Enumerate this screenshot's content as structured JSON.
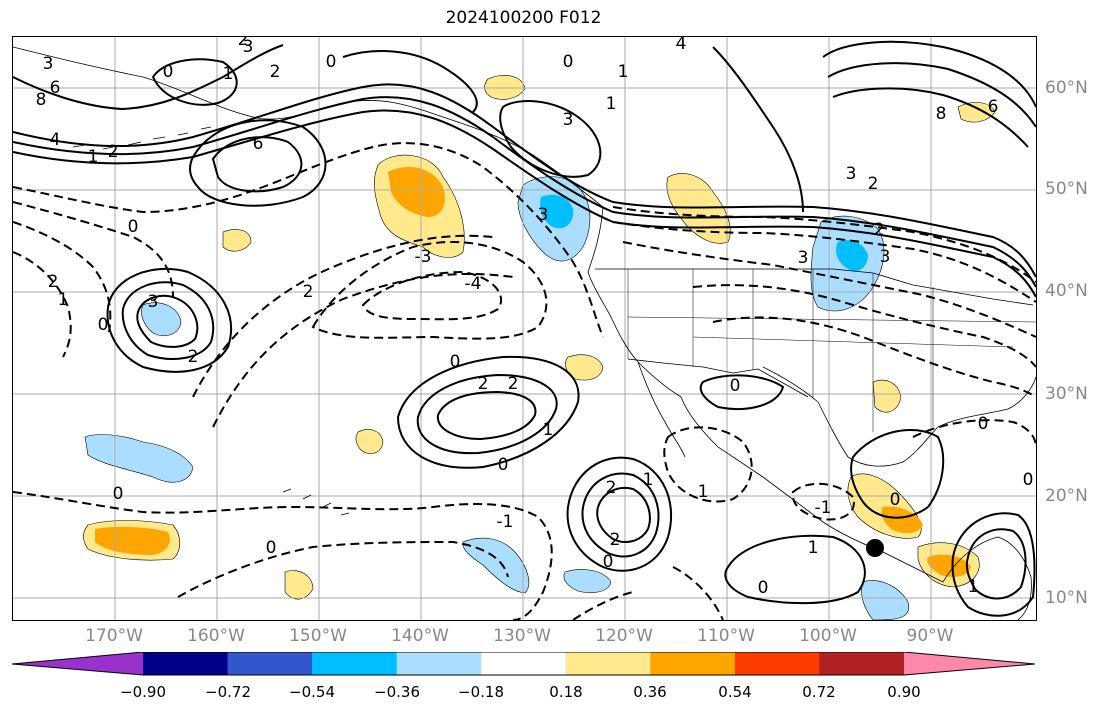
{
  "title": "2024100200 F012",
  "lat_labels": [
    "60°N",
    "50°N",
    "40°N",
    "30°N",
    "20°N",
    "10°N"
  ],
  "lon_labels": [
    "170°W",
    "160°W",
    "150°W",
    "140°W",
    "130°W",
    "120°W",
    "110°W",
    "100°W",
    "90°W"
  ],
  "colorbar": {
    "colors": [
      "#9932cc",
      "#00008b",
      "#3157cc",
      "#00bfff",
      "#aaddff",
      "#ffffff",
      "#ffe98c",
      "#ffa500",
      "#ff3c00",
      "#b22222",
      "#ff88aa"
    ],
    "tick_labels": [
      "−0.90",
      "−0.72",
      "−0.54",
      "−0.36",
      "−0.18",
      "0.18",
      "0.36",
      "0.54",
      "0.72",
      "0.90"
    ]
  },
  "contour_labels": [
    {
      "text": "3"
    },
    {
      "text": "2"
    },
    {
      "text": "0"
    },
    {
      "text": "1"
    },
    {
      "text": "6"
    },
    {
      "text": "8"
    },
    {
      "text": "4"
    },
    {
      "text": "6"
    },
    {
      "text": "2"
    },
    {
      "text": "1"
    },
    {
      "text": "0"
    },
    {
      "text": "2"
    },
    {
      "text": "3"
    },
    {
      "text": "1"
    },
    {
      "text": "4"
    },
    {
      "text": "1"
    },
    {
      "text": "8"
    },
    {
      "text": "6"
    },
    {
      "text": "3"
    },
    {
      "text": "2"
    },
    {
      "text": "2"
    },
    {
      "text": "3"
    },
    {
      "text": "0"
    },
    {
      "text": "3"
    },
    {
      "text": "0"
    },
    {
      "text": "3"
    },
    {
      "text": "2"
    },
    {
      "text": "-3"
    },
    {
      "text": "-4"
    },
    {
      "text": "3"
    },
    {
      "text": "2"
    },
    {
      "text": "1"
    },
    {
      "text": "0"
    },
    {
      "text": "2"
    },
    {
      "text": "0"
    },
    {
      "text": "1"
    },
    {
      "text": "0"
    },
    {
      "text": "2"
    },
    {
      "text": "2"
    },
    {
      "text": "1"
    },
    {
      "text": "2"
    },
    {
      "text": "1"
    },
    {
      "text": "0"
    },
    {
      "text": "-1"
    },
    {
      "text": "0"
    },
    {
      "text": "0"
    },
    {
      "text": "0"
    },
    {
      "text": "0"
    },
    {
      "text": "1"
    },
    {
      "text": "0"
    },
    {
      "text": "1"
    },
    {
      "text": "-1"
    },
    {
      "text": "0"
    },
    {
      "text": "0"
    },
    {
      "text": "2"
    },
    {
      "text": "3"
    }
  ]
}
